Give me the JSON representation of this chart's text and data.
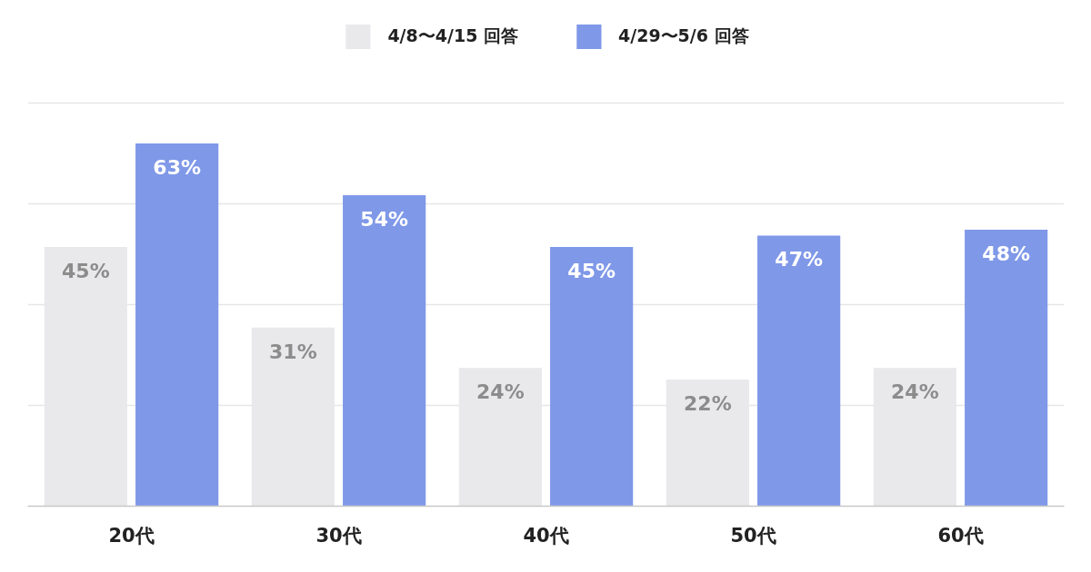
{
  "chart_data": {
    "type": "bar",
    "categories": [
      "20代",
      "30代",
      "40代",
      "50代",
      "60代"
    ],
    "series": [
      {
        "name": "4/8〜4/15 回答",
        "color": "#e9e9ec",
        "values": [
          45,
          31,
          24,
          22,
          24
        ],
        "value_labels": [
          "45%",
          "31%",
          "24%",
          "22%",
          "24%"
        ]
      },
      {
        "name": "4/29〜5/6 回答",
        "color": "#7f98e8",
        "values": [
          63,
          54,
          45,
          47,
          48
        ],
        "value_labels": [
          "63%",
          "54%",
          "45%",
          "47%",
          "48%"
        ]
      }
    ],
    "yticks": [
      {
        "value": 17.5,
        "label": null
      },
      {
        "value": 35,
        "label": null
      },
      {
        "value": 52.5,
        "label": null
      },
      {
        "value": 70,
        "label": null
      }
    ],
    "grid": "y",
    "legend": "top",
    "tick_labels": "x"
  }
}
